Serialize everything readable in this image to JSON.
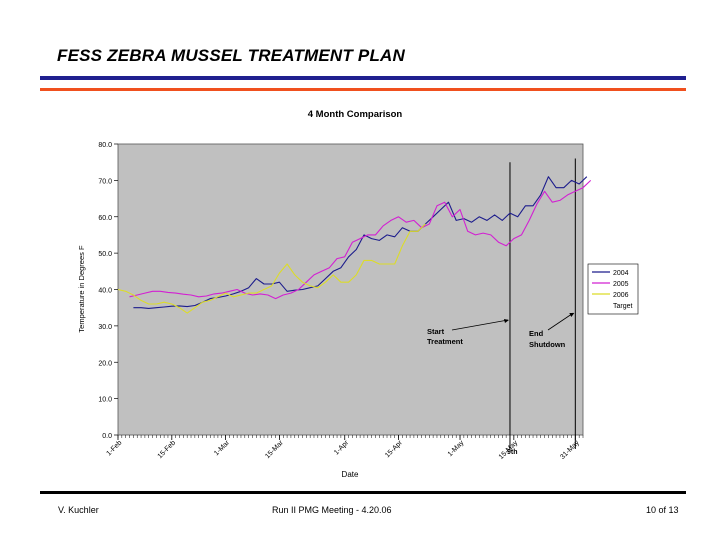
{
  "slide": {
    "title": "FESS ZEBRA MUSSEL TREATMENT PLAN",
    "colors": {
      "rule_top": "#1f1f8f",
      "rule_bottom": "#f0501e"
    }
  },
  "footer": {
    "author": "V. Kuchler",
    "meeting": "Run II PMG Meeting  -  4.20.06",
    "page": "10 of 13"
  },
  "chart_data": {
    "type": "line",
    "title": "4 Month Comparison",
    "xlabel": "Date",
    "ylabel": "Temperature in Degrees F",
    "ylim": [
      0,
      80
    ],
    "yticks": [
      0,
      10,
      20,
      30,
      40,
      50,
      60,
      70,
      80
    ],
    "ytick_labels": [
      "0.0",
      "10.0",
      "20.0",
      "30.0",
      "40.0",
      "50.0",
      "60.0",
      "70.0",
      "80.0"
    ],
    "x_unit": "day of year",
    "xlim": [
      32,
      153
    ],
    "xticks": [
      {
        "label": "1-Feb",
        "x": 32
      },
      {
        "label": "15-Feb",
        "x": 46
      },
      {
        "label": "1-Mar",
        "x": 60
      },
      {
        "label": "15-Mar",
        "x": 74
      },
      {
        "label": "1-Apr",
        "x": 91
      },
      {
        "label": "15-Apr",
        "x": 105
      },
      {
        "label": "1-May",
        "x": 121
      },
      {
        "label": "15-May",
        "x": 135
      },
      {
        "label": "31-May",
        "x": 151
      }
    ],
    "plot_background": "#c0c0c0",
    "grid": false,
    "legend_position": "right",
    "series": [
      {
        "name": "2004",
        "color": "#1c1c8c",
        "x": [
          36,
          38,
          40,
          42,
          44,
          46,
          48,
          50,
          52,
          54,
          56,
          58,
          60,
          62,
          64,
          66,
          68,
          70,
          72,
          74,
          76,
          78,
          80,
          82,
          84,
          86,
          88,
          90,
          92,
          94,
          96,
          98,
          100,
          102,
          104,
          106,
          108,
          110,
          112,
          114,
          116,
          118,
          120,
          122,
          124,
          126,
          128,
          130,
          132,
          134,
          136,
          138,
          140,
          142,
          144,
          146,
          148,
          150,
          152,
          154
        ],
        "y": [
          35,
          35,
          34.8,
          35,
          35.2,
          35.4,
          35.5,
          35.3,
          35.6,
          36.5,
          37.5,
          37.8,
          38.2,
          38.8,
          39.5,
          40.5,
          43,
          41.5,
          41.5,
          42,
          39.5,
          39.8,
          40,
          40.5,
          41,
          43,
          45,
          46,
          49,
          51,
          55,
          54,
          53.5,
          55,
          54.5,
          57,
          56,
          56,
          58,
          60,
          62,
          64,
          59,
          59.5,
          58.5,
          60,
          59,
          60.5,
          59,
          61,
          60,
          63,
          63,
          66,
          71,
          68,
          68,
          70,
          69,
          71
        ]
      },
      {
        "name": "2005",
        "color": "#d220d2",
        "x": [
          35,
          37,
          39,
          41,
          43,
          45,
          47,
          49,
          51,
          53,
          55,
          57,
          59,
          61,
          63,
          65,
          67,
          69,
          71,
          73,
          75,
          77,
          79,
          81,
          83,
          85,
          87,
          89,
          91,
          93,
          95,
          97,
          99,
          101,
          103,
          105,
          107,
          109,
          111,
          113,
          115,
          117,
          119,
          121,
          123,
          125,
          127,
          129,
          131,
          133,
          135,
          137,
          139,
          141,
          143,
          145,
          147,
          149,
          151,
          153,
          155
        ],
        "y": [
          38,
          38.5,
          39,
          39.5,
          39.5,
          39.2,
          39,
          38.7,
          38.5,
          38,
          38.2,
          38.8,
          39,
          39.5,
          40,
          39,
          38.5,
          38.8,
          38.5,
          37.5,
          38.5,
          39,
          40,
          42,
          44,
          45,
          46,
          48.5,
          49,
          53,
          54,
          55,
          55,
          57.5,
          59,
          60,
          58.5,
          59,
          57,
          58,
          63,
          64,
          60,
          62,
          56,
          55,
          55.5,
          55,
          53,
          52,
          54,
          55,
          59,
          63.5,
          67,
          64,
          64.5,
          66,
          67,
          68,
          70
        ]
      },
      {
        "name": "2006",
        "color": "#dcdc28",
        "x": [
          32,
          34,
          36,
          38,
          40,
          42,
          44,
          46,
          48,
          50,
          52,
          54,
          56,
          58,
          60,
          62,
          64,
          66,
          68,
          70,
          72,
          74,
          76,
          78,
          80,
          82,
          84,
          86,
          88,
          90,
          92,
          94,
          96,
          98,
          100,
          102,
          104,
          106,
          108,
          110,
          112
        ],
        "y": [
          40,
          39.5,
          38.5,
          37,
          36,
          36,
          36.5,
          36,
          35,
          33.5,
          35,
          36.5,
          37,
          38,
          39,
          38,
          38.5,
          39,
          39,
          40,
          41,
          44.5,
          47,
          44,
          42,
          41,
          40.5,
          42,
          44,
          42,
          42,
          44,
          48,
          48,
          47,
          47,
          47,
          52,
          56,
          56,
          58
        ]
      }
    ],
    "legend_extra": "Target",
    "markers": [
      {
        "x": 134,
        "ystart": 75,
        "label": "9th"
      },
      {
        "x": 151,
        "ystart": 76
      }
    ],
    "annotations": [
      {
        "line1": "Start",
        "line2": "Treatment"
      },
      {
        "line1": "End",
        "line2": "Shutdown"
      }
    ]
  }
}
